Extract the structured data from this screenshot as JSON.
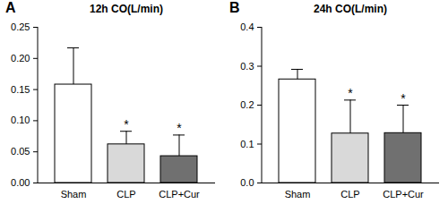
{
  "chart_data": [
    {
      "type": "bar",
      "panel": "A",
      "title": "12h CO(L/min)",
      "categories": [
        "Sham",
        "CLP",
        "CLP+Cur"
      ],
      "values": [
        0.158,
        0.062,
        0.043
      ],
      "errors": [
        0.059,
        0.021,
        0.034
      ],
      "significance": [
        null,
        "*",
        "*"
      ],
      "colors": [
        "#ffffff",
        "#d9d9d9",
        "#707070"
      ],
      "ylim": [
        0,
        0.25
      ],
      "yticks": [
        {
          "value": 0,
          "label": "0.00"
        },
        0.05,
        {
          "value": 0.1,
          "label": "0.10"
        },
        0.15,
        {
          "value": 0.2,
          "label": "0.20"
        },
        0.25
      ]
    },
    {
      "type": "bar",
      "panel": "B",
      "title": "24h CO(L/min)",
      "categories": [
        "Sham",
        "CLP",
        "CLP+Cur"
      ],
      "values": [
        0.266,
        0.127,
        0.128
      ],
      "errors": [
        0.026,
        0.086,
        0.072
      ],
      "significance": [
        null,
        "*",
        "*"
      ],
      "colors": [
        "#ffffff",
        "#d9d9d9",
        "#707070"
      ],
      "ylim": [
        0,
        0.4
      ],
      "yticks": [
        {
          "value": 0,
          "label": "0.0"
        },
        0.1,
        0.2,
        0.3,
        0.4
      ]
    }
  ]
}
